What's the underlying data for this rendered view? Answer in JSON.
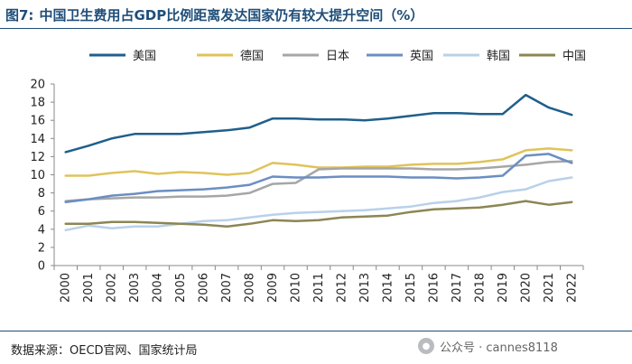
{
  "title": {
    "figure_label": "图7:",
    "text": "中国卫生费用占GDP比例距离发达国家仍有较大提升空间（%）"
  },
  "source_text": "数据来源：OECD官网、国家统计局",
  "watermark": {
    "icon": "wechat-icon",
    "text": "公众号 · cannes8118"
  },
  "chart_data": {
    "type": "line",
    "title": "中国卫生费用占GDP比例距离发达国家仍有较大提升空间（%）",
    "xlabel": "",
    "ylabel": "",
    "ylim": [
      0,
      20
    ],
    "yticks": [
      "0",
      "2",
      "4",
      "6",
      "8",
      "10",
      "12",
      "14",
      "16",
      "18",
      "20"
    ],
    "grid": false,
    "legend_position": "top",
    "categories": [
      "2000",
      "2001",
      "2002",
      "2003",
      "2004",
      "2005",
      "2006",
      "2007",
      "2008",
      "2009",
      "2010",
      "2011",
      "2012",
      "2013",
      "2014",
      "2015",
      "2016",
      "2017",
      "2018",
      "2019",
      "2020",
      "2021",
      "2022"
    ],
    "series": [
      {
        "name": "美国",
        "color": "#1f5f8b",
        "values": [
          12.5,
          13.2,
          14.0,
          14.5,
          14.5,
          14.5,
          14.7,
          14.9,
          15.2,
          16.2,
          16.2,
          16.1,
          16.1,
          16.0,
          16.2,
          16.5,
          16.8,
          16.8,
          16.7,
          16.7,
          18.8,
          17.4,
          16.6
        ]
      },
      {
        "name": "德国",
        "color": "#e0c35a",
        "values": [
          9.9,
          9.9,
          10.2,
          10.4,
          10.1,
          10.3,
          10.2,
          10.0,
          10.2,
          11.3,
          11.1,
          10.8,
          10.8,
          10.9,
          10.9,
          11.1,
          11.2,
          11.2,
          11.4,
          11.7,
          12.7,
          12.9,
          12.7
        ]
      },
      {
        "name": "日本",
        "color": "#a6a6a6",
        "values": [
          7.1,
          7.3,
          7.4,
          7.5,
          7.5,
          7.6,
          7.6,
          7.7,
          8.0,
          9.0,
          9.1,
          10.6,
          10.7,
          10.7,
          10.7,
          10.7,
          10.6,
          10.6,
          10.7,
          10.9,
          11.1,
          11.4,
          11.5
        ]
      },
      {
        "name": "英国",
        "color": "#6b8ec2",
        "values": [
          7.0,
          7.3,
          7.7,
          7.9,
          8.2,
          8.3,
          8.4,
          8.6,
          8.9,
          9.8,
          9.7,
          9.7,
          9.8,
          9.8,
          9.8,
          9.7,
          9.7,
          9.6,
          9.7,
          9.9,
          12.1,
          12.3,
          11.3
        ]
      },
      {
        "name": "韩国",
        "color": "#b8d1ea",
        "values": [
          3.9,
          4.4,
          4.1,
          4.3,
          4.3,
          4.6,
          4.9,
          5.0,
          5.3,
          5.6,
          5.8,
          5.9,
          6.0,
          6.1,
          6.3,
          6.5,
          6.9,
          7.1,
          7.5,
          8.1,
          8.4,
          9.3,
          9.7
        ]
      },
      {
        "name": "中国",
        "color": "#8b8653",
        "values": [
          4.6,
          4.6,
          4.8,
          4.8,
          4.7,
          4.6,
          4.5,
          4.3,
          4.6,
          5.0,
          4.9,
          5.0,
          5.3,
          5.4,
          5.5,
          5.9,
          6.2,
          6.3,
          6.4,
          6.7,
          7.1,
          6.7,
          7.0
        ]
      }
    ]
  }
}
